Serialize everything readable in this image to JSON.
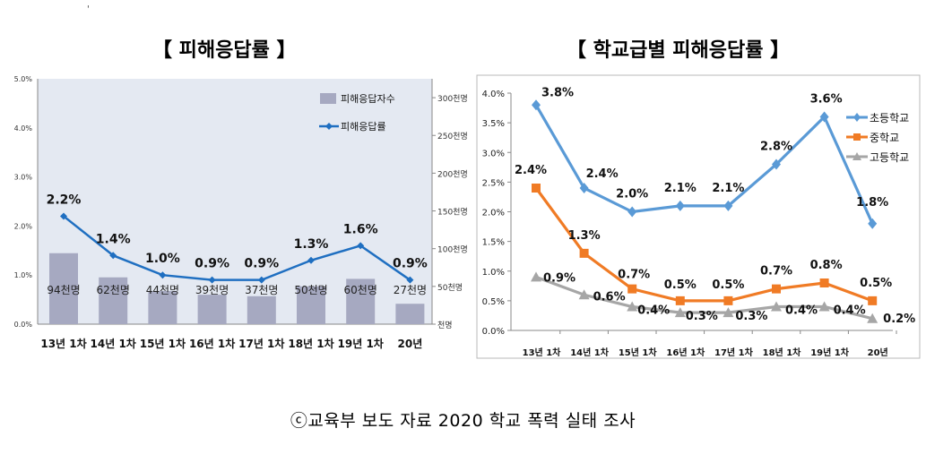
{
  "figure": {
    "left_title": "【 피해응답률 】",
    "right_title": "【 학교급별 피해응답률 】",
    "source": "ⓒ교육부 보도 자료 2020 학교 폭력 실태 조사",
    "stray_mark": "'"
  },
  "chart_data": [
    {
      "type": "bar+line",
      "title": "【 피해응답률 】",
      "categories": [
        "13년 1차",
        "14년 1차",
        "15년 1차",
        "16년 1차",
        "17년 1차",
        "18년 1차",
        "19년 1차",
        "20년"
      ],
      "bar_series": {
        "name": "피해응답자수",
        "values": [
          94,
          62,
          44,
          39,
          37,
          50,
          60,
          27
        ],
        "labels": [
          "94천명",
          "62천명",
          "44천명",
          "39천명",
          "37천명",
          "50천명",
          "60천명",
          "27천명"
        ],
        "color": "#a6a9c1"
      },
      "line_series": {
        "name": "피해응답률",
        "values": [
          2.2,
          1.4,
          1.0,
          0.9,
          0.9,
          1.3,
          1.6,
          0.9
        ],
        "labels": [
          "2.2%",
          "1.4%",
          "1.0%",
          "0.9%",
          "0.9%",
          "1.3%",
          "1.6%",
          "0.9%"
        ],
        "color": "#1f6fc1"
      },
      "y_left": {
        "ylim": [
          0,
          5.0
        ],
        "ticks": [
          "0.0%",
          "1.0%",
          "2.0%",
          "3.0%",
          "4.0%",
          "5.0%"
        ]
      },
      "y_right": {
        "ylim": [
          0,
          325
        ],
        "ticks": [
          "천명",
          "50천명",
          "100천명",
          "150천명",
          "200천명",
          "250천명",
          "300천명"
        ]
      },
      "legend_position": "top-right",
      "background": "#e4e9f2"
    },
    {
      "type": "line",
      "title": "【 학교급별 피해응답률 】",
      "categories": [
        "13년 1차",
        "14년 1차",
        "15년 1차",
        "16년 1차",
        "17년 1차",
        "18년 1차",
        "19년 1차",
        "20년"
      ],
      "series": [
        {
          "name": "초등학교",
          "values": [
            3.8,
            2.4,
            2.0,
            2.1,
            2.1,
            2.8,
            3.6,
            1.8
          ],
          "labels": [
            "3.8%",
            "2.4%",
            "2.0%",
            "2.1%",
            "2.1%",
            "2.8%",
            "3.6%",
            "1.8%"
          ],
          "color": "#5a9ad6",
          "marker": "diamond"
        },
        {
          "name": "중학교",
          "values": [
            2.4,
            1.3,
            0.7,
            0.5,
            0.5,
            0.7,
            0.8,
            0.5
          ],
          "labels": [
            "2.4%",
            "1.3%",
            "0.7%",
            "0.5%",
            "0.5%",
            "0.7%",
            "0.8%",
            "0.5%"
          ],
          "color": "#f07b25",
          "marker": "square"
        },
        {
          "name": "고등학교",
          "values": [
            0.9,
            0.6,
            0.4,
            0.3,
            0.3,
            0.4,
            0.4,
            0.2
          ],
          "labels": [
            "0.9%",
            "0.6%",
            "0.4%",
            "0.3%",
            "0.3%",
            "0.4%",
            "0.4%",
            "0.2%"
          ],
          "color": "#a6a6a6",
          "marker": "triangle"
        }
      ],
      "ylim": [
        0,
        4.0
      ],
      "ticks": [
        "0.0%",
        "0.5%",
        "1.0%",
        "1.5%",
        "2.0%",
        "2.5%",
        "3.0%",
        "3.5%",
        "4.0%"
      ],
      "legend_position": "right"
    }
  ]
}
